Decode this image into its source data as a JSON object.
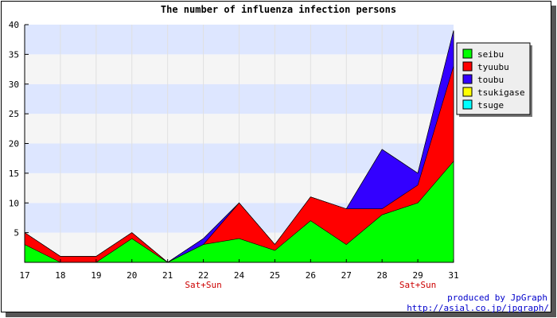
{
  "chart_data": {
    "type": "area",
    "title": "The number of influenza infection persons",
    "xlabel": "",
    "ylabel": "",
    "categories": [
      "17",
      "18",
      "19",
      "20",
      "21",
      "22",
      "24",
      "25",
      "26",
      "27",
      "28",
      "29",
      "31"
    ],
    "weekend_labels": {
      "22": "Sat+Sun",
      "29": "Sat+Sun"
    },
    "ylim": [
      0,
      40
    ],
    "yticks": [
      5,
      10,
      15,
      20,
      25,
      30,
      35,
      40
    ],
    "stacked": true,
    "grid": true,
    "legend_position": "right",
    "series": [
      {
        "name": "seibu",
        "color": "#00ff00",
        "values": [
          3,
          0,
          0,
          4,
          0,
          3,
          4,
          2,
          7,
          3,
          8,
          10,
          17
        ]
      },
      {
        "name": "tyuubu",
        "color": "#ff0000",
        "values": [
          2,
          1,
          1,
          1,
          0,
          0,
          6,
          1,
          4,
          6,
          1,
          3,
          16
        ]
      },
      {
        "name": "toubu",
        "color": "#3300ff",
        "values": [
          0,
          0,
          0,
          0,
          0,
          1,
          0,
          0,
          0,
          0,
          10,
          2,
          6
        ]
      },
      {
        "name": "tsukigase",
        "color": "#ffff00",
        "values": [
          0,
          0,
          0,
          0,
          0,
          0,
          0,
          0,
          0,
          0,
          0,
          0,
          0
        ]
      },
      {
        "name": "tsuge",
        "color": "#00ffff",
        "values": [
          0,
          0,
          0,
          0,
          0,
          0,
          0,
          0,
          0,
          0,
          0,
          0,
          0
        ]
      }
    ]
  },
  "footer": {
    "line1": "produced by JpGraph",
    "line2": "http://asial.co.jp/jpgraph/"
  }
}
